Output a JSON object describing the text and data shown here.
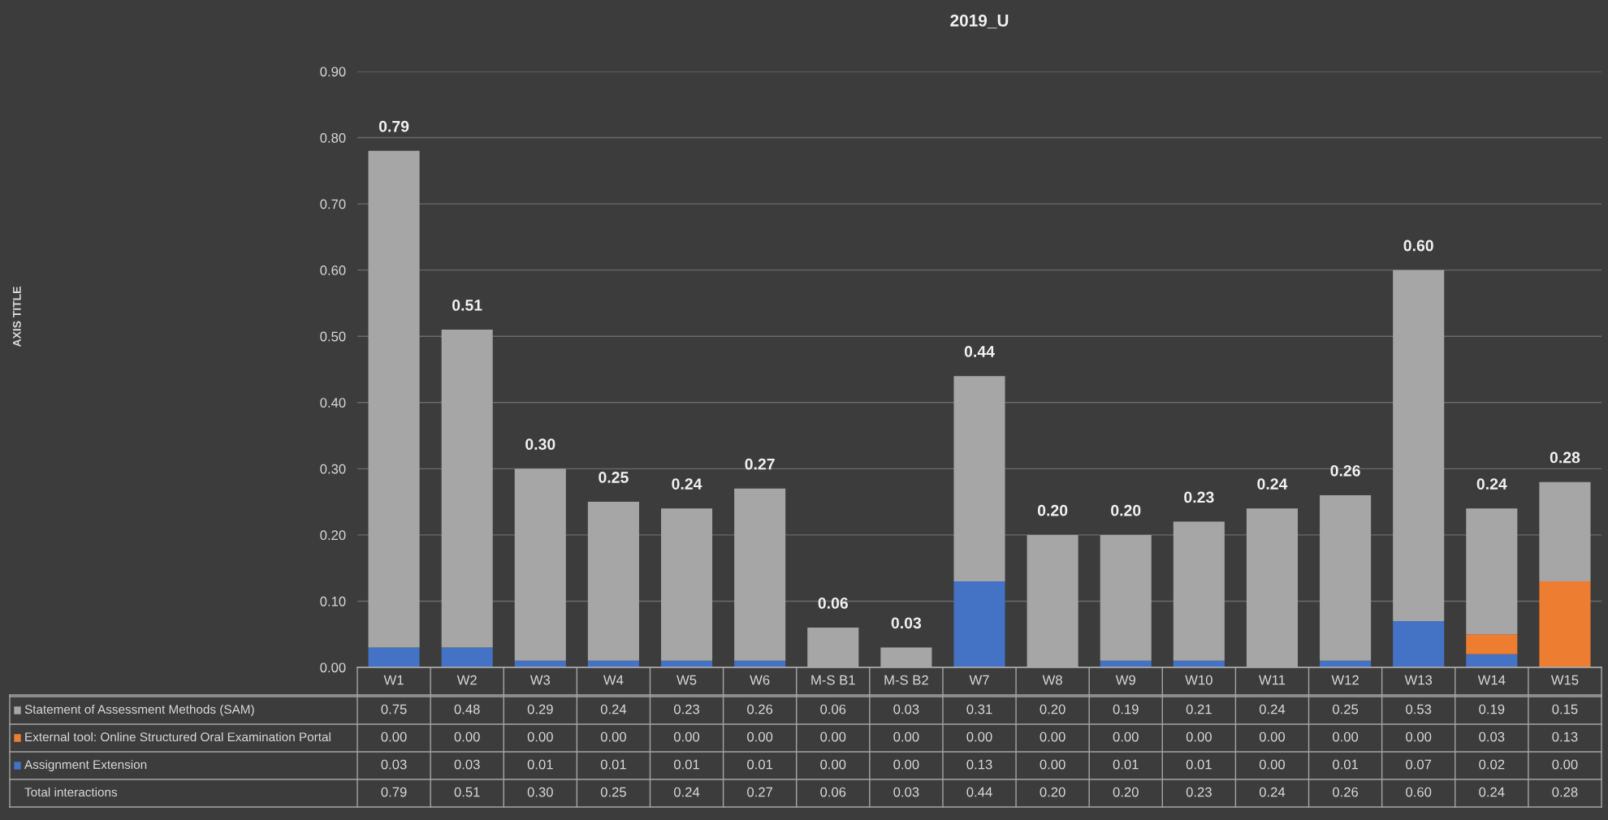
{
  "chart_data": {
    "type": "bar",
    "title": "2019_U",
    "stacked": true,
    "categories": [
      "W1",
      "W2",
      "W3",
      "W4",
      "W5",
      "W6",
      "M-S B1",
      "M-S B2",
      "W7",
      "W8",
      "W9",
      "W10",
      "W11",
      "W12",
      "W13",
      "W14",
      "W15"
    ],
    "series": [
      {
        "name": "Assignment Extension",
        "color": "#4472c4",
        "values": [
          0.03,
          0.03,
          0.01,
          0.01,
          0.01,
          0.01,
          0.0,
          0.0,
          0.13,
          0.0,
          0.01,
          0.01,
          0.0,
          0.01,
          0.07,
          0.02,
          0.0
        ],
        "value_labels": [
          "0.03",
          "0.03",
          "0.01",
          "0.01",
          "0.01",
          "0.01",
          "0.00",
          "0.00",
          "0.13",
          "0.00",
          "0.01",
          "0.01",
          "0.00",
          "0.01",
          "0.07",
          "0.02",
          "0.00"
        ]
      },
      {
        "name": "External tool: Online Structured Oral Examination Portal",
        "color": "#ed7d31",
        "values": [
          0.0,
          0.0,
          0.0,
          0.0,
          0.0,
          0.0,
          0.0,
          0.0,
          0.0,
          0.0,
          0.0,
          0.0,
          0.0,
          0.0,
          0.0,
          0.03,
          0.13
        ],
        "value_labels": [
          "0.00",
          "0.00",
          "0.00",
          "0.00",
          "0.00",
          "0.00",
          "0.00",
          "0.00",
          "0.00",
          "0.00",
          "0.00",
          "0.00",
          "0.00",
          "0.00",
          "0.00",
          "0.03",
          "0.13"
        ]
      },
      {
        "name": "Statement of Assessment Methods (SAM)",
        "color": "#a6a6a6",
        "values": [
          0.75,
          0.48,
          0.29,
          0.24,
          0.23,
          0.26,
          0.06,
          0.03,
          0.31,
          0.2,
          0.19,
          0.21,
          0.24,
          0.25,
          0.53,
          0.19,
          0.15
        ],
        "value_labels": [
          "0.75",
          "0.48",
          "0.29",
          "0.24",
          "0.23",
          "0.26",
          "0.06",
          "0.03",
          "0.31",
          "0.20",
          "0.19",
          "0.21",
          "0.24",
          "0.25",
          "0.53",
          "0.19",
          "0.15"
        ]
      }
    ],
    "annotations": [
      "AXIS TITLE",
      "Total interactions"
    ],
    "totals": [
      "0.79",
      "0.51",
      "0.30",
      "0.25",
      "0.24",
      "0.27",
      "0.06",
      "0.03",
      "0.44",
      "0.20",
      "0.20",
      "0.23",
      "0.24",
      "0.26",
      "0.60",
      "0.24",
      "0.28"
    ],
    "ylim": [
      0,
      0.9
    ],
    "yticks": [
      {
        "value": 0,
        "label": "0.00"
      },
      {
        "value": 0.1,
        "label": "0.10"
      },
      {
        "value": 0.2,
        "label": "0.20"
      },
      {
        "value": 0.3,
        "label": "0.30"
      },
      {
        "value": 0.4,
        "label": "0.40"
      },
      {
        "value": 0.5,
        "label": "0.50"
      },
      {
        "value": 0.6,
        "label": "0.60"
      },
      {
        "value": 0.7,
        "label": "0.70"
      },
      {
        "value": 0.8,
        "label": "0.80"
      },
      {
        "value": 0.9,
        "label": "0.90"
      }
    ],
    "grid": "y",
    "legend": "bottom"
  }
}
